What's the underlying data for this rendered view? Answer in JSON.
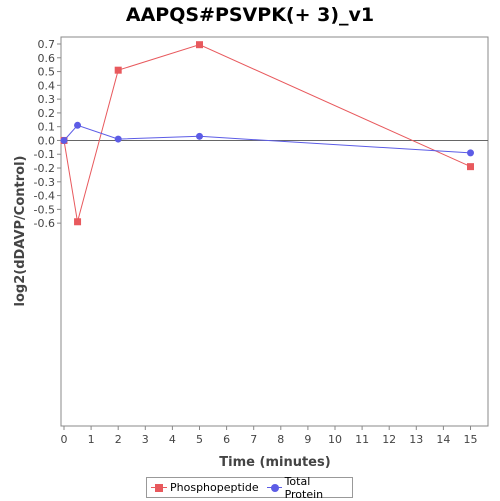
{
  "chart_data": {
    "type": "line",
    "title": "AAPQS#PSVPK(+ 3)_v1",
    "xlabel": "Time (minutes)",
    "ylabel": "log2(dDAVP/Control)",
    "xlim": [
      0,
      15.8
    ],
    "ylim": [
      -0.66,
      0.76
    ],
    "xticks": [
      0,
      1,
      2,
      3,
      4,
      5,
      6,
      7,
      8,
      9,
      10,
      11,
      12,
      13,
      14,
      15
    ],
    "yticks": [
      0.7,
      0.6,
      0.5,
      0.4,
      0.3,
      0.2,
      0.1,
      0.0,
      -0.1,
      -0.2,
      -0.3,
      -0.4,
      -0.5,
      -0.6
    ],
    "ytick_labels": [
      "0.7",
      "0.6",
      "0.5",
      "0.4",
      "0.3",
      "0.2",
      "0.1",
      "0.0",
      "-0.1",
      "-0.2",
      "-0.3",
      "-0.4",
      "-0.5",
      "-0.6"
    ],
    "grid": false,
    "zero_line": true,
    "legend_position": "bottom",
    "series": [
      {
        "name": "Phosphopeptide",
        "color": "#e8595d",
        "marker": "square",
        "x": [
          0,
          0.5,
          2,
          5,
          15
        ],
        "y": [
          0.0,
          -0.59,
          0.51,
          0.695,
          -0.19
        ]
      },
      {
        "name": "Total Protein",
        "color": "#5c5ce6",
        "marker": "circle",
        "x": [
          0,
          0.5,
          2,
          5,
          15
        ],
        "y": [
          0.0,
          0.11,
          0.01,
          0.03,
          -0.09
        ]
      }
    ]
  }
}
